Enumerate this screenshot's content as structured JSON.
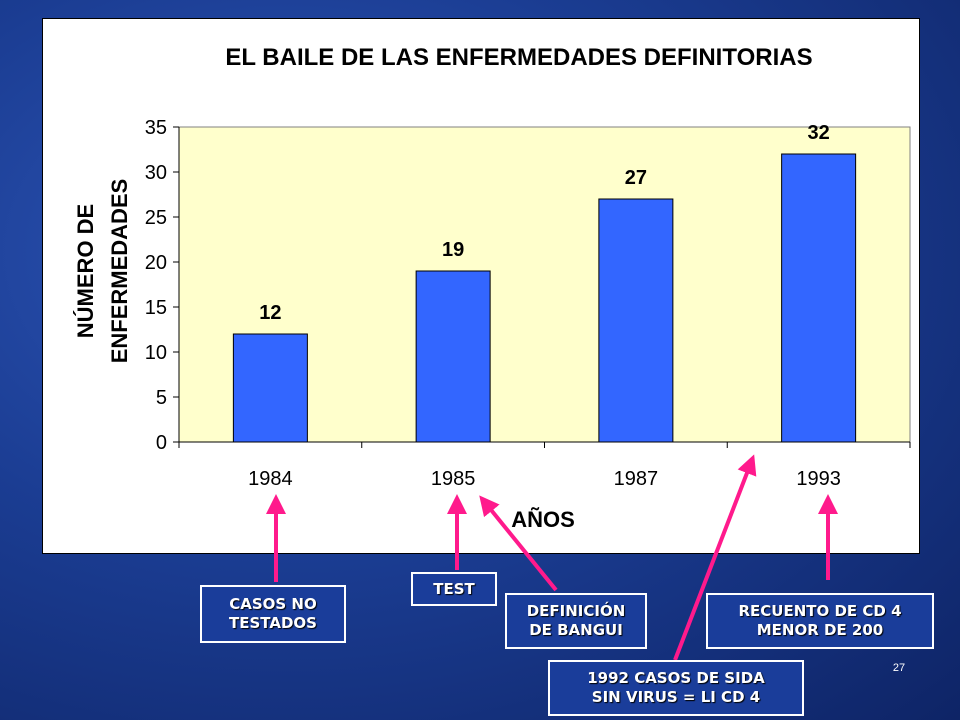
{
  "chart_data": {
    "type": "bar",
    "title": "EL BAILE DE LAS ENFERMEDADES DEFINITORIAS",
    "xlabel": "AÑOS",
    "ylabel_lines": [
      "NÚMERO DE",
      "ENFERMEDADES"
    ],
    "categories": [
      "1984",
      "1985",
      "1987",
      "1993"
    ],
    "values": [
      12,
      19,
      27,
      32
    ],
    "ylim": [
      0,
      35
    ],
    "yticks": [
      0,
      5,
      10,
      15,
      20,
      25,
      30,
      35
    ],
    "grid": false,
    "bar_color": "#3366ff",
    "plot_background": "#ffffcc"
  },
  "callouts": {
    "casos_no_testados": [
      "CASOS NO",
      "TESTADOS"
    ],
    "test": [
      "TEST"
    ],
    "definicion_bangui": [
      "DEFINICIÓN",
      "DE BANGUI"
    ],
    "recuento_cd4": [
      "RECUENTO DE CD 4",
      "MENOR DE 200"
    ],
    "casos_sida_sin_virus": [
      "1992 CASOS DE SIDA",
      "SIN VIRUS = LI CD 4"
    ]
  },
  "arrow_color": "#ff1a8c",
  "slide_number": "27"
}
